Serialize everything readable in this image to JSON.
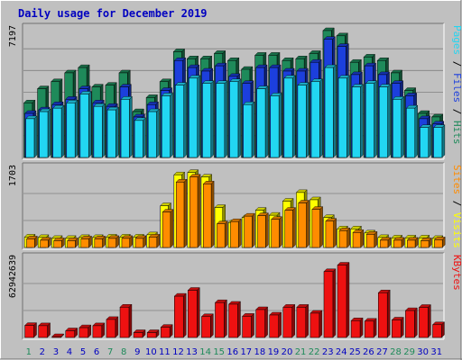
{
  "chart_data": {
    "type": "bar",
    "title": "Daily usage for December 2019",
    "categories": [
      "1",
      "2",
      "3",
      "4",
      "5",
      "6",
      "7",
      "8",
      "9",
      "10",
      "11",
      "12",
      "13",
      "14",
      "15",
      "16",
      "17",
      "18",
      "19",
      "20",
      "21",
      "22",
      "23",
      "24",
      "25",
      "26",
      "27",
      "28",
      "29",
      "30",
      "31"
    ],
    "weekend_days": [
      "1",
      "7",
      "8",
      "14",
      "15",
      "21",
      "22",
      "28",
      "29"
    ],
    "panels": [
      {
        "name": "hits-files-pages",
        "ymax_label": "7197",
        "ylim": [
          0,
          7197
        ],
        "side_labels": [
          "Pages",
          "Files",
          "Hits"
        ],
        "series": [
          {
            "name": "Hits",
            "values": [
              3100,
              3900,
              4300,
              4800,
              5100,
              4000,
              4100,
              4800,
              2600,
              3400,
              4300,
              6000,
              5600,
              5600,
              5900,
              5500,
              5000,
              5800,
              5800,
              5500,
              5600,
              5900,
              7197,
              6900,
              5400,
              5700,
              5500,
              4800,
              3800,
              2500,
              2300
            ],
            "color": "#1e8a5a"
          },
          {
            "name": "Files",
            "values": [
              2500,
              2700,
              3000,
              3300,
              3900,
              3100,
              2900,
              4000,
              2300,
              3000,
              3800,
              5500,
              5100,
              4900,
              5200,
              4600,
              4200,
              5100,
              5100,
              4900,
              4900,
              5400,
              6700,
              6300,
              4700,
              5200,
              4700,
              4200,
              3500,
              2200,
              1900
            ],
            "color": "#1c3fdd"
          },
          {
            "name": "Pages",
            "values": [
              2200,
              2600,
              2800,
              3100,
              3600,
              2900,
              2700,
              3300,
              2100,
              2600,
              3500,
              4100,
              4500,
              4200,
              4200,
              4300,
              3000,
              3900,
              3500,
              4500,
              4100,
              4300,
              5100,
              4500,
              4000,
              4200,
              4000,
              3300,
              2800,
              1700,
              1700
            ],
            "color": "#22d6f2"
          }
        ]
      },
      {
        "name": "visits-sites",
        "ymax_label": "1703",
        "ylim": [
          0,
          1703
        ],
        "side_labels": [
          "Sites",
          "Visits"
        ],
        "series": [
          {
            "name": "Visits",
            "values": [
              230,
              220,
              200,
              200,
              220,
              220,
              230,
              230,
              230,
              280,
              920,
              1600,
              1650,
              1550,
              880,
              550,
              660,
              820,
              710,
              1020,
              1210,
              1050,
              660,
              410,
              410,
              320,
              220,
              210,
              210,
              210,
              200
            ],
            "color": "#ffff00"
          },
          {
            "name": "Sites",
            "values": [
              190,
              160,
              150,
              150,
              190,
              190,
              200,
              200,
              200,
              230,
              780,
              1440,
              1550,
              1400,
              520,
              570,
              690,
              700,
              620,
              820,
              980,
              840,
              580,
              370,
              330,
              290,
              160,
              160,
              160,
              150,
              170
            ],
            "color": "#ff8c00"
          }
        ]
      },
      {
        "name": "kbytes",
        "ymax_label": "62942639",
        "ylim": [
          0,
          62942639
        ],
        "side_labels": [
          "KBytes"
        ],
        "series": [
          {
            "name": "KBytes",
            "values": [
              9800000,
              9600000,
              700000,
              5500000,
              8000000,
              9600000,
              14700000,
              24700000,
              4000000,
              4000000,
              8300000,
              33600000,
              38400000,
              17000000,
              28400000,
              27100000,
              17300000,
              22700000,
              18300000,
              24600000,
              24600000,
              19800000,
              53600000,
              58900000,
              13700000,
              13300000,
              36400000,
              14300000,
              21900000,
              24500000,
              10400000
            ],
            "color": "#ee1111"
          }
        ]
      }
    ],
    "grid": true
  },
  "colors": {
    "background": "#c0c0c0",
    "title": "#0000c0",
    "weekday_label": "#0000c0",
    "weekend_label": "#1e8a5a",
    "axis_text": "#000000",
    "gridline": "#808080"
  }
}
